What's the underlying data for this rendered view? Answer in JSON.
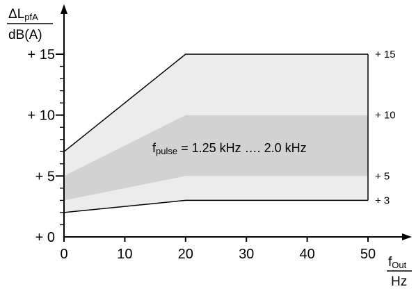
{
  "chart_data": {
    "type": "area",
    "x_axis": {
      "label_main": "f",
      "label_sub": "Out",
      "label_unit": "Hz",
      "ticks": [
        0,
        10,
        20,
        30,
        40,
        50
      ],
      "tick_labels": [
        "0",
        "10",
        "20",
        "30",
        "40",
        "50"
      ],
      "range": [
        0,
        50
      ]
    },
    "y_axis": {
      "label_main": "ΔL",
      "label_sub": "pfA",
      "label_unit": "dB(A)",
      "ticks": [
        0,
        5,
        10,
        15
      ],
      "tick_labels": [
        "+ 0",
        "+ 5",
        "+ 10",
        "+ 15"
      ],
      "range": [
        0,
        15
      ],
      "minor_step": 1
    },
    "bands": [
      {
        "role": "outer",
        "color": "#ececec",
        "upper": [
          [
            0,
            7
          ],
          [
            20,
            15
          ],
          [
            50,
            15
          ]
        ],
        "lower": [
          [
            0,
            2
          ],
          [
            20,
            3
          ],
          [
            50,
            3
          ]
        ]
      },
      {
        "role": "inner",
        "color": "#d2d2d2",
        "upper": [
          [
            0,
            5
          ],
          [
            20,
            10
          ],
          [
            50,
            10
          ]
        ],
        "lower": [
          [
            0,
            3
          ],
          [
            20,
            5
          ],
          [
            50,
            5
          ]
        ]
      }
    ],
    "right_labels": [
      {
        "text": "+ 15",
        "y": 15
      },
      {
        "text": "+ 10",
        "y": 10
      },
      {
        "text": "+ 5",
        "y": 5
      },
      {
        "text": "+ 3",
        "y": 3
      }
    ],
    "annotation": {
      "main": "f",
      "sub": "pulse",
      "rest": " = 1.25 kHz …. 2.0 kHz"
    }
  }
}
